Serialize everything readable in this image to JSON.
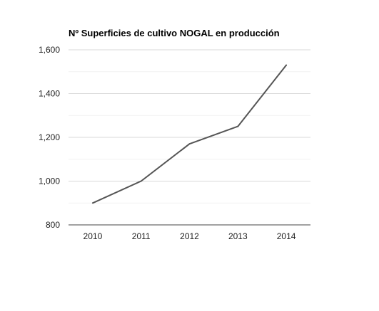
{
  "chart_data": {
    "type": "line",
    "title": "Nº Superficies de cultivo NOGAL en producción",
    "xlabel": "",
    "ylabel": "",
    "categories": [
      "2010",
      "2011",
      "2012",
      "2013",
      "2014"
    ],
    "series": [
      {
        "values": [
          900,
          1000,
          1170,
          1250,
          1530
        ]
      }
    ],
    "ylim": [
      800,
      1600
    ],
    "yticks": [
      800,
      1000,
      1200,
      1400,
      1600
    ],
    "ytick_labels": [
      "800",
      "1,000",
      "1,200",
      "1,400",
      "1,600"
    ],
    "grid": true,
    "legend": "none",
    "line_color": "#555555"
  }
}
